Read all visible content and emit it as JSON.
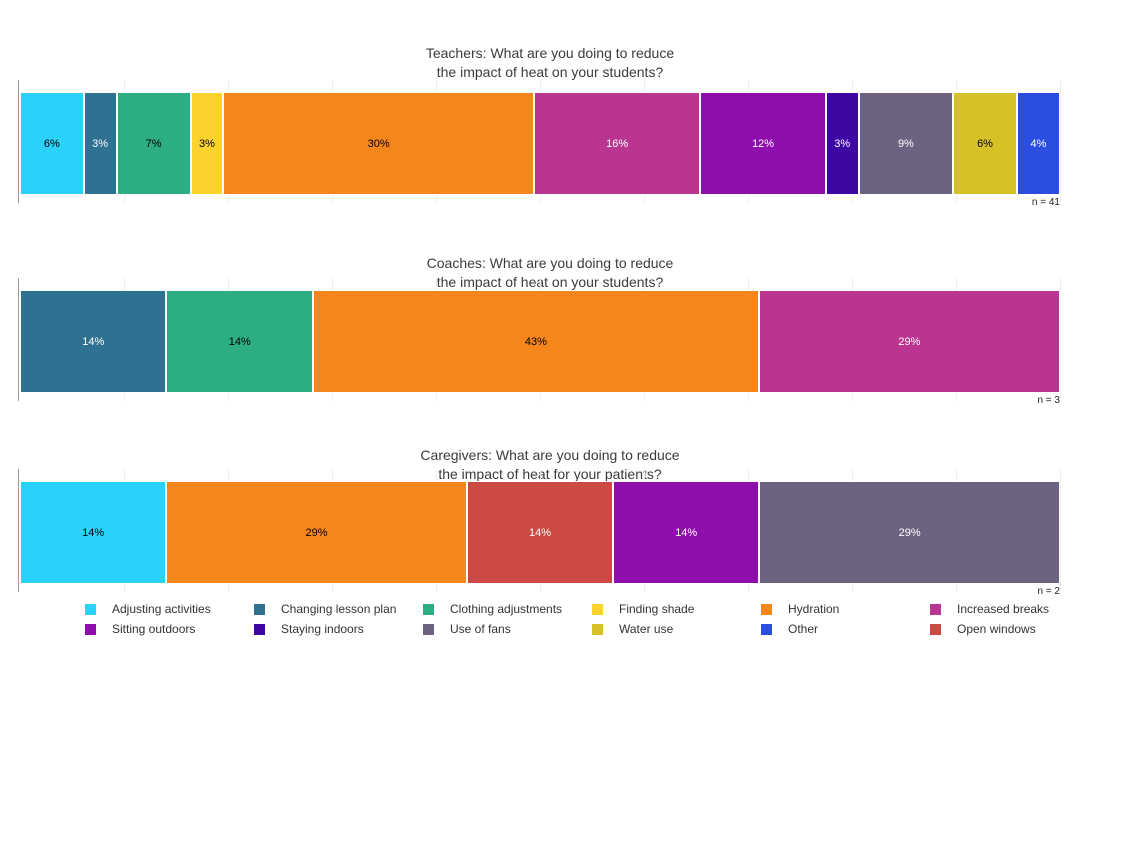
{
  "page": {
    "background": "#ffffff"
  },
  "palette": {
    "Adjusting activities": {
      "color": "#2ad1f8",
      "label_color": "#000000"
    },
    "Changing lesson plan": {
      "color": "#2f7191",
      "label_color": "#ffffff"
    },
    "Clothing adjustments": {
      "color": "#2dae81",
      "label_color": "#000000"
    },
    "Finding shade": {
      "color": "#fcd22d",
      "label_color": "#000000"
    },
    "Hydration": {
      "color": "#f5861c",
      "label_color": "#000000"
    },
    "Increased breaks": {
      "color": "#ba3591",
      "label_color": "#ffffff"
    },
    "Sitting outdoors": {
      "color": "#8e0dad",
      "label_color": "#ffffff"
    },
    "Staying indoors": {
      "color": "#3e07a3",
      "label_color": "#ffffff"
    },
    "Use of fans": {
      "color": "#6d6380",
      "label_color": "#ffffff"
    },
    "Water use": {
      "color": "#d6c226",
      "label_color": "#000000"
    },
    "Other": {
      "color": "#2b4ee1",
      "label_color": "#ffffff"
    },
    "Open windows": {
      "color": "#cc4a43",
      "label_color": "#ffffff"
    }
  },
  "chart_data": [
    {
      "type": "bar",
      "stacked": true,
      "orientation": "horizontal",
      "group": "Teachers",
      "title": "Teachers: What are you doing to reduce the impact of heat on your students?",
      "title_line1": "Teachers: What are you doing to reduce",
      "title_line2": "the impact of heat on your students?",
      "note": "n = 41",
      "xlim": [
        0,
        100
      ],
      "grid_ticks_percent": [
        10,
        20,
        30,
        40,
        50,
        60,
        70,
        80,
        90,
        100
      ],
      "segments": [
        {
          "category": "Adjusting activities",
          "percent": 6,
          "label": "6%"
        },
        {
          "category": "Changing lesson plan",
          "percent": 3,
          "label": "3%"
        },
        {
          "category": "Clothing adjustments",
          "percent": 7,
          "label": "7%"
        },
        {
          "category": "Finding shade",
          "percent": 3,
          "label": "3%"
        },
        {
          "category": "Hydration",
          "percent": 30,
          "label": "30%"
        },
        {
          "category": "Increased breaks",
          "percent": 16,
          "label": "16%"
        },
        {
          "category": "Sitting outdoors",
          "percent": 12,
          "label": "12%"
        },
        {
          "category": "Staying indoors",
          "percent": 3,
          "label": "3%"
        },
        {
          "category": "Use of fans",
          "percent": 9,
          "label": "9%"
        },
        {
          "category": "Water use",
          "percent": 6,
          "label": "6%"
        },
        {
          "category": "Other",
          "percent": 4,
          "label": "4%"
        }
      ]
    },
    {
      "type": "bar",
      "stacked": true,
      "orientation": "horizontal",
      "group": "Coaches",
      "title": "Coaches: What are you doing to reduce the impact of heat on your students?",
      "title_line1": "Coaches: What are you doing to reduce",
      "title_line2": "the impact of heat on your students?",
      "note": "n = 3",
      "xlim": [
        0,
        100
      ],
      "grid_ticks_percent": [
        10,
        20,
        30,
        40,
        50,
        60,
        70,
        80,
        90,
        100
      ],
      "segments": [
        {
          "category": "Changing lesson plan",
          "percent": 14,
          "label": "14%"
        },
        {
          "category": "Clothing adjustments",
          "percent": 14,
          "label": "14%"
        },
        {
          "category": "Hydration",
          "percent": 43,
          "label": "43%"
        },
        {
          "category": "Increased breaks",
          "percent": 29,
          "label": "29%"
        }
      ]
    },
    {
      "type": "bar",
      "stacked": true,
      "orientation": "horizontal",
      "group": "Caregivers",
      "title": "Caregivers: What are you doing to reduce the impact of heat for your patients?",
      "title_line1": "Caregivers: What are you doing to reduce",
      "title_line2": "the impact of heat for your patients?",
      "note": "n = 2",
      "xlim": [
        0,
        100
      ],
      "grid_ticks_percent": [
        10,
        20,
        30,
        40,
        50,
        60,
        70,
        80,
        90,
        100
      ],
      "segments": [
        {
          "category": "Adjusting activities",
          "percent": 14,
          "label": "14%"
        },
        {
          "category": "Hydration",
          "percent": 29,
          "label": "29%"
        },
        {
          "category": "Open windows",
          "percent": 14,
          "label": "14%"
        },
        {
          "category": "Sitting outdoors",
          "percent": 14,
          "label": "14%"
        },
        {
          "category": "Use of fans",
          "percent": 29,
          "label": "29%"
        }
      ]
    }
  ],
  "legend": {
    "position": "bottom",
    "items": [
      {
        "label": "Adjusting activities"
      },
      {
        "label": "Changing lesson plan"
      },
      {
        "label": "Clothing adjustments"
      },
      {
        "label": "Finding shade"
      },
      {
        "label": "Hydration"
      },
      {
        "label": "Increased breaks"
      },
      {
        "label": "Sitting outdoors"
      },
      {
        "label": "Staying indoors"
      },
      {
        "label": "Use of fans"
      },
      {
        "label": "Water use"
      },
      {
        "label": "Other"
      },
      {
        "label": "Open windows"
      }
    ]
  }
}
